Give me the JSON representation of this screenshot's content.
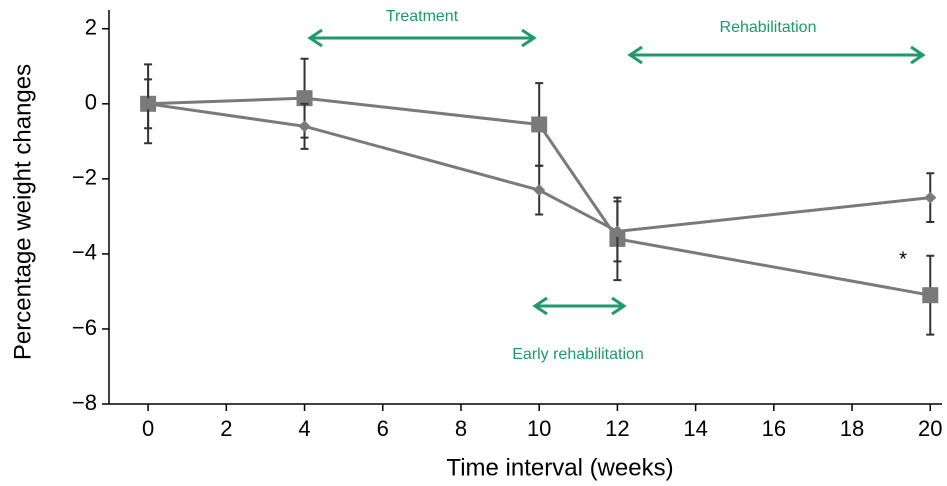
{
  "chart_data": {
    "type": "line",
    "xlabel": "Time interval (weeks)",
    "ylabel": "Percentage weight changes",
    "x": [
      0,
      4,
      10,
      12,
      20
    ],
    "series": [
      {
        "color": "#7a7a7a",
        "marker": "square",
        "values": [
          0,
          0.15,
          -0.55,
          -3.6,
          -5.1
        ],
        "errors": [
          1.05,
          1.05,
          1.1,
          1.1,
          1.05
        ]
      },
      {
        "color": "#7a7a7a",
        "marker": "diamond",
        "values": [
          0,
          -0.6,
          -2.3,
          -3.4,
          -2.5
        ],
        "errors": [
          0.65,
          0.6,
          0.65,
          0.8,
          0.65
        ]
      }
    ],
    "xlim": [
      -1,
      20.3
    ],
    "ylim": [
      -8,
      2.5
    ],
    "xticks": [
      0,
      2,
      4,
      6,
      8,
      10,
      12,
      14,
      16,
      18,
      20
    ],
    "yticks": [
      {
        "value": -8,
        "label": "−8"
      },
      {
        "value": -6,
        "label": "−6"
      },
      {
        "value": -4,
        "label": "−4"
      },
      {
        "value": -2,
        "label": "−2"
      },
      0,
      2
    ],
    "annotations": [
      "Treatment",
      "Rehabilitation",
      "Early rehabilitation",
      "*"
    ]
  }
}
